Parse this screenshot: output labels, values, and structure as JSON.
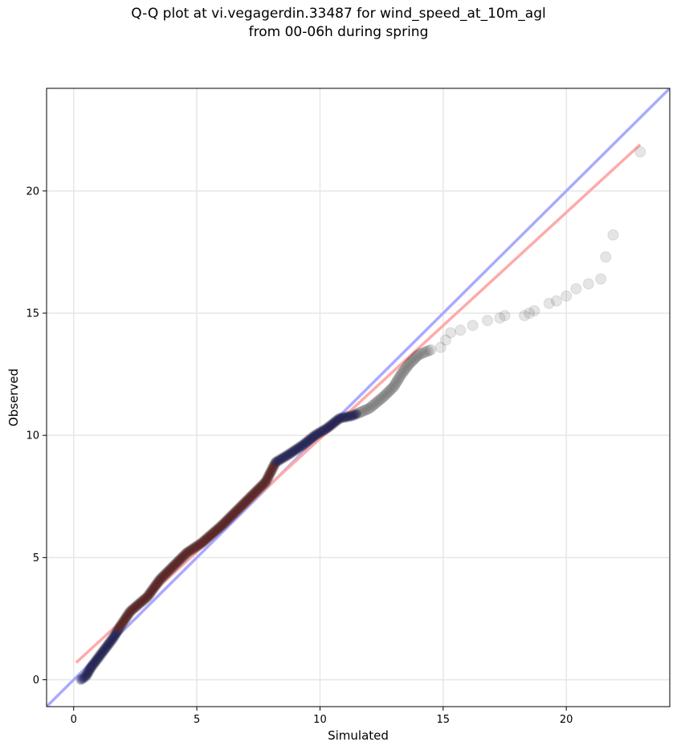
{
  "chart_data": {
    "type": "scatter",
    "title_lines": [
      "Q-Q plot at vi.vegagerdin.33487 for wind_speed_at_10m_agl",
      "from 00-06h during spring"
    ],
    "xlabel": "Simulated",
    "ylabel": "Observed",
    "xlim": [
      -1.1,
      24.2
    ],
    "ylim": [
      -1.1,
      24.2
    ],
    "xticks": [
      0,
      5,
      10,
      15,
      20
    ],
    "yticks": [
      0,
      5,
      10,
      15,
      20
    ],
    "xtick_labels": [
      "0",
      "5",
      "10",
      "15",
      "20"
    ],
    "ytick_labels": [
      "0",
      "5",
      "10",
      "15",
      "20"
    ],
    "grid": true,
    "colors": {
      "points": "#333333",
      "identity_line": "#aaaaff",
      "fit_line": "#ffaaaa",
      "dense_blue": "#000080",
      "dense_red": "#8b0000"
    },
    "points_curve": [
      [
        0.3,
        0.0
      ],
      [
        0.5,
        0.15
      ],
      [
        0.7,
        0.5
      ],
      [
        1.0,
        0.9
      ],
      [
        1.3,
        1.3
      ],
      [
        1.6,
        1.7
      ],
      [
        1.9,
        2.2
      ],
      [
        2.3,
        2.8
      ],
      [
        3.0,
        3.4
      ],
      [
        3.5,
        4.1
      ],
      [
        4.0,
        4.6
      ],
      [
        4.6,
        5.2
      ],
      [
        5.2,
        5.6
      ],
      [
        6.0,
        6.3
      ],
      [
        6.7,
        7.0
      ],
      [
        7.3,
        7.6
      ],
      [
        7.8,
        8.1
      ],
      [
        8.0,
        8.5
      ],
      [
        8.2,
        8.9
      ],
      [
        8.7,
        9.2
      ],
      [
        9.3,
        9.6
      ],
      [
        9.8,
        10.0
      ],
      [
        10.3,
        10.3
      ],
      [
        10.8,
        10.7
      ],
      [
        11.3,
        10.8
      ],
      [
        12.0,
        11.1
      ],
      [
        12.6,
        11.6
      ],
      [
        13.0,
        12.0
      ],
      [
        13.3,
        12.5
      ],
      [
        13.6,
        12.9
      ],
      [
        14.0,
        13.3
      ],
      [
        14.5,
        13.5
      ]
    ],
    "points_tail": [
      [
        14.9,
        13.6
      ],
      [
        15.1,
        13.9
      ],
      [
        15.3,
        14.2
      ],
      [
        15.7,
        14.3
      ],
      [
        16.2,
        14.5
      ],
      [
        16.8,
        14.7
      ],
      [
        17.3,
        14.8
      ],
      [
        17.5,
        14.9
      ],
      [
        18.3,
        14.9
      ],
      [
        18.5,
        15.0
      ],
      [
        18.7,
        15.1
      ],
      [
        19.3,
        15.4
      ],
      [
        19.6,
        15.5
      ],
      [
        20.0,
        15.7
      ],
      [
        20.4,
        16.0
      ],
      [
        20.9,
        16.2
      ],
      [
        21.4,
        16.4
      ],
      [
        21.6,
        17.3
      ],
      [
        21.9,
        18.2
      ],
      [
        23.0,
        21.6
      ]
    ],
    "identity_line": [
      [
        -1.1,
        -1.1
      ],
      [
        24.2,
        24.2
      ]
    ],
    "fit_line": [
      [
        0.1,
        0.7
      ],
      [
        23.0,
        21.9
      ]
    ]
  }
}
